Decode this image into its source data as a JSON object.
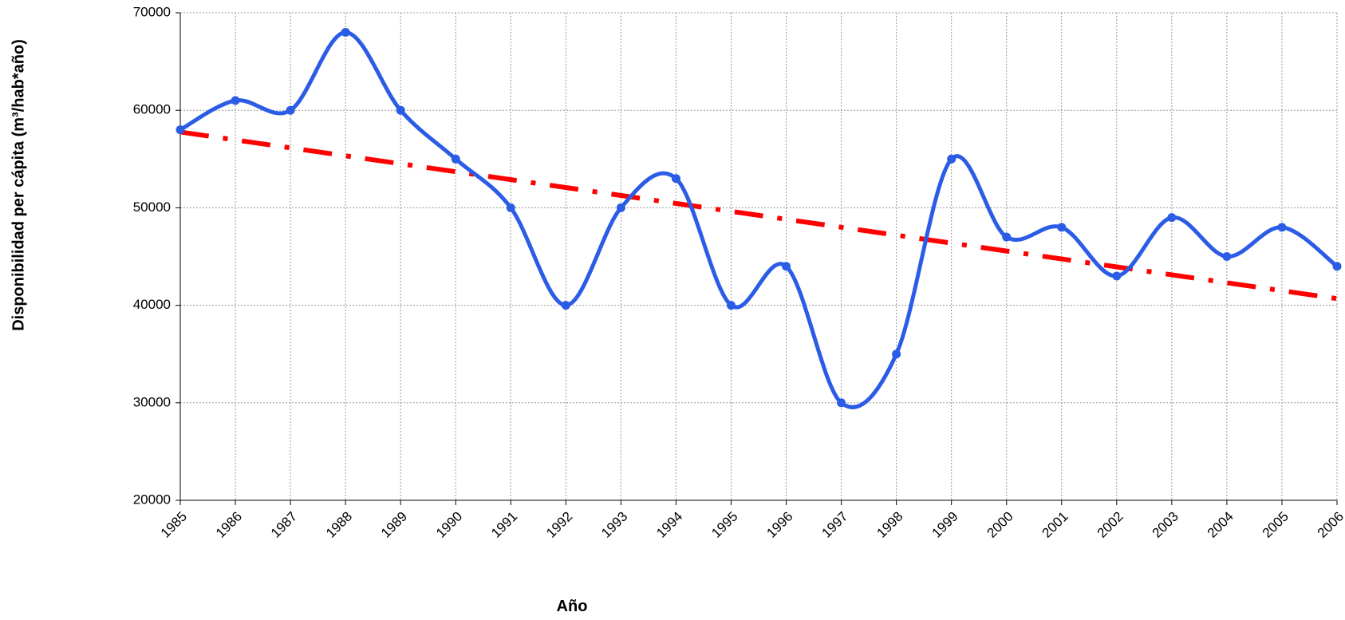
{
  "chart_data": {
    "type": "line",
    "xlabel": "Año",
    "ylabel": "Disponibilidad per cápita  (m³/hab*año)",
    "x": [
      1985,
      1986,
      1987,
      1988,
      1989,
      1990,
      1991,
      1992,
      1993,
      1994,
      1995,
      1996,
      1997,
      1998,
      1999,
      2000,
      2001,
      2002,
      2003,
      2004,
      2005,
      2006
    ],
    "series": [
      {
        "color": "#2b5ce6",
        "smooth": true,
        "values": [
          58000,
          61000,
          60000,
          68000,
          60000,
          55000,
          50000,
          40000,
          50000,
          53000,
          40000,
          44000,
          30000,
          35000,
          55000,
          47000,
          48000,
          43000,
          49000,
          45000,
          48000,
          44000
        ]
      }
    ],
    "trendline": {
      "type": "linear",
      "color": "#ff0000"
    },
    "xlim": [
      1985,
      2006
    ],
    "xticks": [
      1985,
      1986,
      1987,
      1988,
      1989,
      1990,
      1991,
      1992,
      1993,
      1994,
      1995,
      1996,
      1997,
      1998,
      1999,
      2000,
      2001,
      2002,
      2003,
      2004,
      2005,
      2006
    ],
    "ylim": [
      20000,
      70000
    ],
    "yticks": [
      20000,
      30000,
      40000,
      50000,
      60000,
      70000
    ],
    "grid": true
  }
}
